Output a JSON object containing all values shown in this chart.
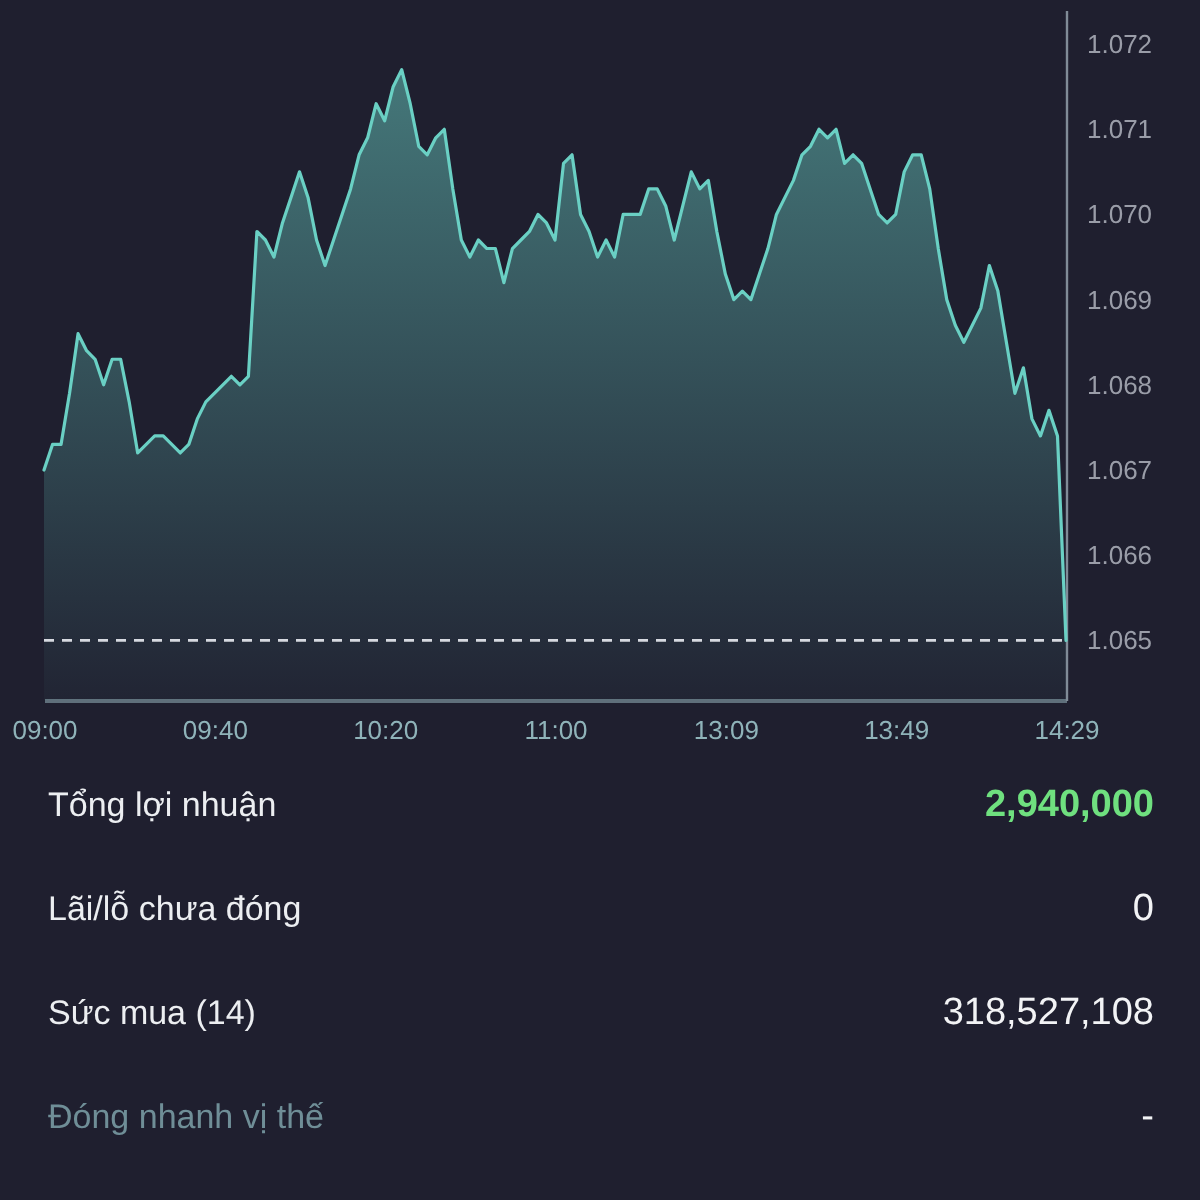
{
  "chart_data": [
    {
      "type": "area",
      "categories": [
        "09:00",
        null,
        null,
        null,
        null,
        null,
        null,
        null,
        null,
        null,
        null,
        null,
        null,
        null,
        null,
        null,
        null,
        null,
        null,
        null,
        "09:40",
        null,
        null,
        null,
        null,
        null,
        null,
        null,
        null,
        null,
        null,
        null,
        null,
        null,
        null,
        null,
        null,
        null,
        null,
        null,
        "10:20",
        null,
        null,
        null,
        null,
        null,
        null,
        null,
        null,
        null,
        null,
        null,
        null,
        null,
        null,
        null,
        null,
        null,
        null,
        null,
        "11:00",
        null,
        null,
        null,
        null,
        null,
        null,
        null,
        null,
        null,
        null,
        null,
        null,
        null,
        null,
        null,
        null,
        null,
        null,
        null,
        "13:09",
        null,
        null,
        null,
        null,
        null,
        null,
        null,
        null,
        null,
        null,
        null,
        null,
        null,
        null,
        null,
        null,
        null,
        null,
        null,
        "13:49",
        null,
        null,
        null,
        null,
        null,
        null,
        null,
        null,
        null,
        null,
        null,
        null,
        null,
        null,
        null,
        null,
        null,
        null,
        null,
        "14:29"
      ],
      "values": [
        1.067,
        1.0673,
        1.0673,
        1.0679,
        1.0686,
        1.0684,
        1.0683,
        1.068,
        1.0683,
        1.0683,
        1.0678,
        1.0672,
        1.0673,
        1.0674,
        1.0674,
        1.0673,
        1.0672,
        1.0673,
        1.0676,
        1.0678,
        1.0679,
        1.068,
        1.0681,
        1.068,
        1.0681,
        1.0698,
        1.0697,
        1.0695,
        1.0699,
        1.0702,
        1.0705,
        1.0702,
        1.0697,
        1.0694,
        1.0697,
        1.07,
        1.0703,
        1.0707,
        1.0709,
        1.0713,
        1.0711,
        1.0715,
        1.0717,
        1.0713,
        1.0708,
        1.0707,
        1.0709,
        1.071,
        1.0703,
        1.0697,
        1.0695,
        1.0697,
        1.0696,
        1.0696,
        1.0692,
        1.0696,
        1.0697,
        1.0698,
        1.07,
        1.0699,
        1.0697,
        1.0706,
        1.0707,
        1.07,
        1.0698,
        1.0695,
        1.0697,
        1.0695,
        1.07,
        1.07,
        1.07,
        1.0703,
        1.0703,
        1.0701,
        1.0697,
        1.0701,
        1.0705,
        1.0703,
        1.0704,
        1.0698,
        1.0693,
        1.069,
        1.0691,
        1.069,
        1.0693,
        1.0696,
        1.07,
        1.0702,
        1.0704,
        1.0707,
        1.0708,
        1.071,
        1.0709,
        1.071,
        1.0706,
        1.0707,
        1.0706,
        1.0703,
        1.07,
        1.0699,
        1.07,
        1.0705,
        1.0707,
        1.0707,
        1.0703,
        1.0696,
        1.069,
        1.0687,
        1.0685,
        1.0687,
        1.0689,
        1.0694,
        1.0691,
        1.0685,
        1.0679,
        1.0682,
        1.0676,
        1.0674,
        1.0677,
        1.0674,
        1.065
      ],
      "color": "#6ad0c4",
      "ylim": [
        1.0643,
        1.0724
      ],
      "yticks": [
        1.065,
        1.066,
        1.067,
        1.068,
        1.069,
        {
          "value": 1.07,
          "label": "1.070"
        },
        1.071,
        1.072
      ],
      "grid": false,
      "ref_lines": [
        {
          "axis": "y",
          "value": 1.065,
          "color": "#d6d9e0",
          "line_style": "dashed"
        }
      ]
    },
    {
      "type": "other",
      "annotations": [
        "Tổng lợi nhuận",
        "2,940,000",
        "Lãi/lỗ chưa đóng",
        "0",
        "Sức mua (14)",
        "318,527,108",
        "Đóng nhanh vị thế",
        "-"
      ]
    }
  ]
}
